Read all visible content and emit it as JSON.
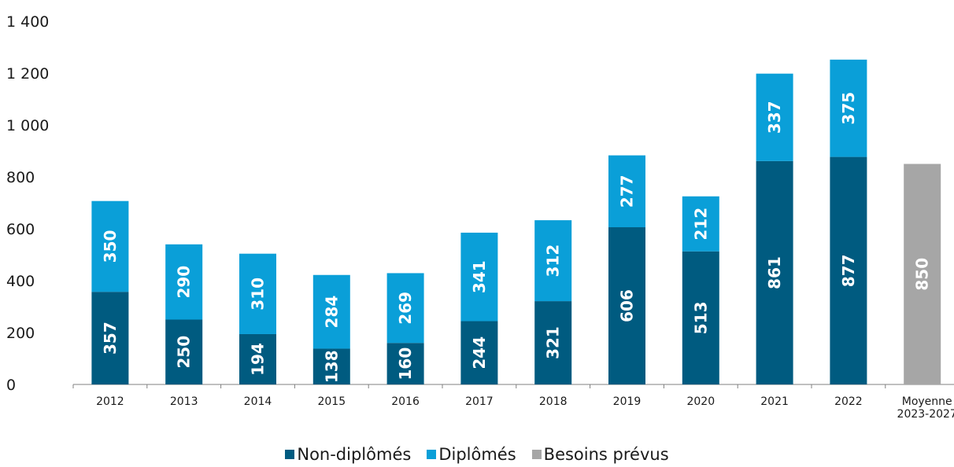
{
  "chart_data": {
    "type": "bar",
    "stacked": true,
    "categories": [
      "2012",
      "2013",
      "2014",
      "2015",
      "2016",
      "2017",
      "2018",
      "2019",
      "2020",
      "2021",
      "2022",
      "Moyenne\n2023-2027"
    ],
    "series": [
      {
        "name": "Non-diplômés",
        "color": "#005b80",
        "values": [
          357,
          250,
          194,
          138,
          160,
          244,
          321,
          606,
          513,
          861,
          877,
          null
        ]
      },
      {
        "name": "Diplômés",
        "color": "#0a9fd8",
        "values": [
          350,
          290,
          310,
          284,
          269,
          341,
          312,
          277,
          212,
          337,
          375,
          null
        ]
      },
      {
        "name": "Besoins prévus",
        "color": "#a6a6a6",
        "values": [
          null,
          null,
          null,
          null,
          null,
          null,
          null,
          null,
          null,
          null,
          null,
          850
        ]
      }
    ],
    "ylim": [
      0,
      1400
    ],
    "yticks": [
      0,
      200,
      400,
      600,
      800,
      1000,
      1200,
      1400
    ],
    "ytick_labels": [
      "0",
      "200",
      "400",
      "600",
      "800",
      "1 000",
      "1 200",
      "1 400"
    ],
    "grid": false,
    "legend_position": "bottom",
    "title": "",
    "xlabel": "",
    "ylabel": ""
  }
}
